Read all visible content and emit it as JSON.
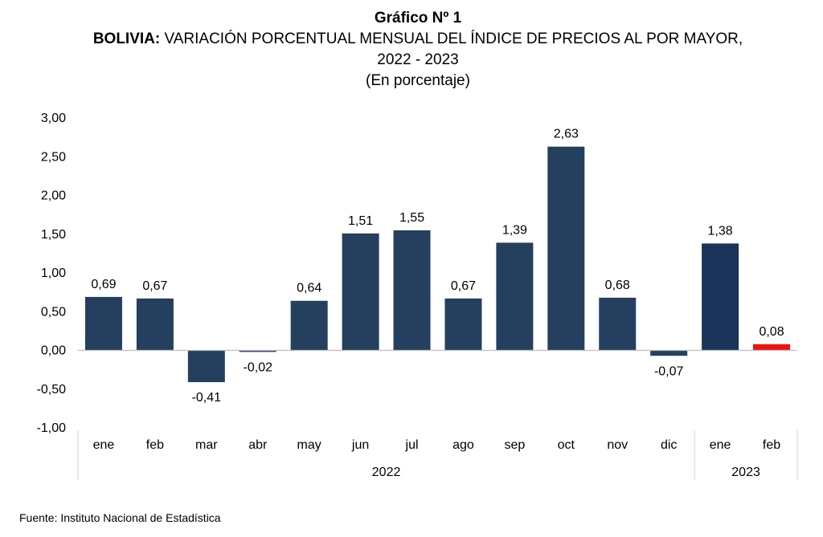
{
  "title": {
    "line1": "Gráfico Nº 1",
    "line2_bold": "BOLIVIA:",
    "line2_rest": " VARIACIÓN PORCENTUAL MENSUAL DEL ÍNDICE DE PRECIOS AL POR MAYOR,",
    "line3": "2022 - 2023",
    "line4": "(En porcentaje)"
  },
  "source": "Fuente: Instituto Nacional de Estadística",
  "colors": {
    "bar": "#253f5f",
    "bar_2023_jan": "#1b355a",
    "highlight": "#ee1111",
    "baseline": "#bfbfbf",
    "divider": "#d4d4d4"
  },
  "chart_data": {
    "type": "bar",
    "categories": [
      "ene",
      "feb",
      "mar",
      "abr",
      "may",
      "jun",
      "jul",
      "ago",
      "sep",
      "oct",
      "nov",
      "dic",
      "ene",
      "feb"
    ],
    "years": [
      {
        "label": "2022",
        "from": 0,
        "to": 11
      },
      {
        "label": "2023",
        "from": 12,
        "to": 13
      }
    ],
    "values": [
      0.69,
      0.67,
      -0.41,
      -0.02,
      0.64,
      1.51,
      1.55,
      0.67,
      1.39,
      2.63,
      0.68,
      -0.07,
      1.38,
      0.08
    ],
    "value_labels": [
      "0,69",
      "0,67",
      "-0,41",
      "-0,02",
      "0,64",
      "1,51",
      "1,55",
      "0,67",
      "1,39",
      "2,63",
      "0,68",
      "-0,07",
      "1,38",
      "0,08"
    ],
    "highlight_index": 13,
    "yticks": [
      3.0,
      2.5,
      2.0,
      1.5,
      1.0,
      0.5,
      0.0,
      -0.5,
      -1.0
    ],
    "ytick_labels": [
      "3,00",
      "2,50",
      "2,00",
      "1,50",
      "1,00",
      "0,50",
      "0,00",
      "-0,50",
      "-1,00"
    ],
    "ylim": [
      -1.0,
      3.0
    ],
    "grid": false,
    "legend": "none"
  }
}
